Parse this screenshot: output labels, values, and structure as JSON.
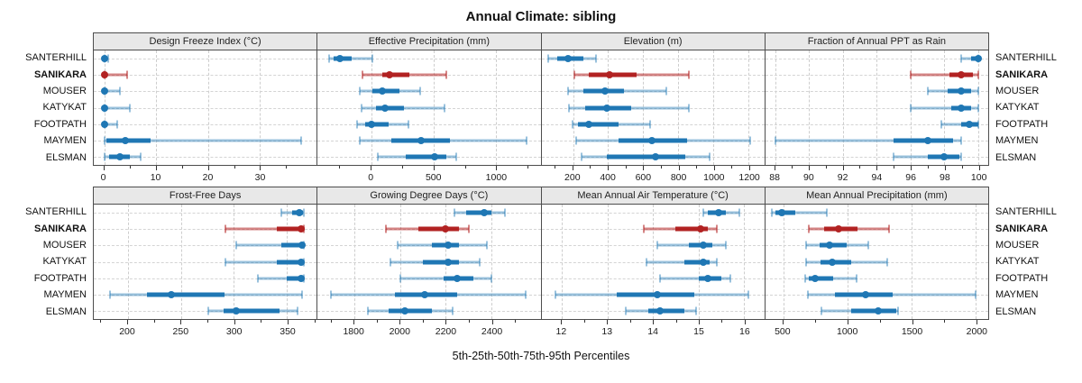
{
  "title": "Annual Climate: sibling",
  "caption": "5th-25th-50th-75th-95th Percentiles",
  "sites": [
    "SANTERHILL",
    "SANIKARA",
    "MOUSER",
    "KATYKAT",
    "FOOTPATH",
    "MAYMEN",
    "ELSMAN"
  ],
  "highlight_site": "SANIKARA",
  "colors": {
    "normal": "#1f77b4",
    "normal_whisker": "rgba(31,119,180,0.45)",
    "highlight": "#b22222",
    "highlight_whisker": "rgba(178,34,34,0.55)",
    "panel_header_bg": "#e8e8e8",
    "panel_border": "#4d4d4d",
    "grid": "#cdcdcd"
  },
  "chart_data": {
    "type": "multi_panel_horizontal_errorbar",
    "percentiles": [
      5,
      25,
      50,
      75,
      95
    ],
    "layout": {
      "rows": 2,
      "cols": 4,
      "site_labels": "both_sides",
      "grid": "dashed"
    },
    "panels": [
      {
        "title": "Design Freeze Index (°C)",
        "xlim": [
          -2,
          41
        ],
        "major_ticks": [
          0,
          10,
          20,
          30
        ],
        "minor_ticks": [
          5,
          15,
          25,
          35
        ],
        "series": [
          {
            "site": "SANTERHILL",
            "values": [
              0,
              0,
              0,
              0,
              0.7
            ]
          },
          {
            "site": "SANIKARA",
            "values": [
              0,
              0,
              0.1,
              0.6,
              4.5
            ]
          },
          {
            "site": "MOUSER",
            "values": [
              0,
              0,
              0.1,
              0.5,
              3
            ]
          },
          {
            "site": "KATYKAT",
            "values": [
              0,
              0,
              0.1,
              0.5,
              5
            ]
          },
          {
            "site": "FOOTPATH",
            "values": [
              0,
              0,
              0.1,
              0.4,
              2.5
            ]
          },
          {
            "site": "MAYMEN",
            "values": [
              0,
              0.5,
              4,
              9,
              38
            ]
          },
          {
            "site": "ELSMAN",
            "values": [
              0,
              1,
              3,
              5,
              7
            ]
          }
        ]
      },
      {
        "title": "Effective Precipitation (mm)",
        "xlim": [
          -430,
          1360
        ],
        "major_ticks": [
          0,
          500,
          1000
        ],
        "minor_ticks": [
          -250,
          250,
          750,
          1250
        ],
        "series": [
          {
            "site": "SANTERHILL",
            "values": [
              -340,
              -300,
              -250,
              -160,
              10
            ]
          },
          {
            "site": "SANIKARA",
            "values": [
              -70,
              90,
              150,
              310,
              600
            ]
          },
          {
            "site": "MOUSER",
            "values": [
              -90,
              10,
              90,
              230,
              390
            ]
          },
          {
            "site": "KATYKAT",
            "values": [
              -80,
              40,
              110,
              260,
              590
            ]
          },
          {
            "site": "FOOTPATH",
            "values": [
              -110,
              -50,
              0,
              140,
              300
            ]
          },
          {
            "site": "MAYMEN",
            "values": [
              -90,
              160,
              400,
              630,
              1250
            ]
          },
          {
            "site": "ELSMAN",
            "values": [
              50,
              280,
              510,
              600,
              680
            ]
          }
        ]
      },
      {
        "title": "Elevation (m)",
        "xlim": [
          20,
          1290
        ],
        "major_ticks": [
          200,
          400,
          600,
          800,
          1000,
          1200
        ],
        "minor_ticks": [
          100,
          300,
          500,
          700,
          900,
          1100
        ],
        "series": [
          {
            "site": "SANTERHILL",
            "values": [
              60,
              110,
              170,
              260,
              330
            ]
          },
          {
            "site": "SANIKARA",
            "values": [
              210,
              290,
              410,
              560,
              860
            ]
          },
          {
            "site": "MOUSER",
            "values": [
              170,
              260,
              380,
              490,
              730
            ]
          },
          {
            "site": "KATYKAT",
            "values": [
              175,
              270,
              390,
              530,
              860
            ]
          },
          {
            "site": "FOOTPATH",
            "values": [
              195,
              230,
              290,
              460,
              640
            ]
          },
          {
            "site": "MAYMEN",
            "values": [
              220,
              460,
              650,
              850,
              1210
            ]
          },
          {
            "site": "ELSMAN",
            "values": [
              250,
              390,
              670,
              840,
              980
            ]
          }
        ]
      },
      {
        "title": "Fraction of Annual PPT as Rain",
        "xlim": [
          87.4,
          100.6
        ],
        "major_ticks": [
          88,
          90,
          92,
          94,
          96,
          98,
          100
        ],
        "minor_ticks": [
          89,
          91,
          93,
          95,
          97,
          99
        ],
        "series": [
          {
            "site": "SANTERHILL",
            "values": [
              99,
              99.6,
              100,
              100,
              100
            ]
          },
          {
            "site": "SANIKARA",
            "values": [
              96,
              98.3,
              99,
              99.7,
              100
            ]
          },
          {
            "site": "MOUSER",
            "values": [
              97,
              98.2,
              99,
              99.6,
              100
            ]
          },
          {
            "site": "KATYKAT",
            "values": [
              96,
              98.4,
              99,
              99.6,
              100
            ]
          },
          {
            "site": "FOOTPATH",
            "values": [
              97.8,
              99,
              99.5,
              100,
              100
            ]
          },
          {
            "site": "MAYMEN",
            "values": [
              88,
              95,
              97,
              98.5,
              99
            ]
          },
          {
            "site": "ELSMAN",
            "values": [
              95,
              97,
              98,
              98.9,
              99
            ]
          }
        ]
      },
      {
        "title": "Frost-Free Days",
        "xlim": [
          168,
          378
        ],
        "major_ticks": [
          200,
          250,
          300,
          350
        ],
        "minor_ticks": [
          175,
          225,
          275,
          325,
          375
        ],
        "series": [
          {
            "site": "SANTERHILL",
            "values": [
              345,
              355,
              362,
              365,
              366
            ]
          },
          {
            "site": "SANIKARA",
            "values": [
              292,
              340,
              363,
              365,
              366
            ]
          },
          {
            "site": "MOUSER",
            "values": [
              302,
              345,
              364,
              365,
              366
            ]
          },
          {
            "site": "KATYKAT",
            "values": [
              292,
              340,
              363,
              365,
              366
            ]
          },
          {
            "site": "FOOTPATH",
            "values": [
              323,
              350,
              363,
              365,
              366
            ]
          },
          {
            "site": "MAYMEN",
            "values": [
              183,
              218,
              241,
              291,
              364
            ]
          },
          {
            "site": "ELSMAN",
            "values": [
              276,
              290,
              302,
              343,
              360
            ]
          }
        ]
      },
      {
        "title": "Growing Degree Days (°C)",
        "xlim": [
          1640,
          2615
        ],
        "major_ticks": [
          1800,
          2000,
          2200,
          2400
        ],
        "minor_ticks": [
          1700,
          1900,
          2100,
          2300,
          2500
        ],
        "series": [
          {
            "site": "SANTERHILL",
            "values": [
              2240,
              2290,
              2370,
              2400,
              2460
            ]
          },
          {
            "site": "SANIKARA",
            "values": [
              1940,
              2080,
              2200,
              2260,
              2300
            ]
          },
          {
            "site": "MOUSER",
            "values": [
              1990,
              2140,
              2210,
              2260,
              2380
            ]
          },
          {
            "site": "KATYKAT",
            "values": [
              1960,
              2100,
              2210,
              2260,
              2350
            ]
          },
          {
            "site": "FOOTPATH",
            "values": [
              2000,
              2190,
              2250,
              2320,
              2400
            ]
          },
          {
            "site": "MAYMEN",
            "values": [
              1700,
              1980,
              2110,
              2250,
              2550
            ]
          },
          {
            "site": "ELSMAN",
            "values": [
              1860,
              1950,
              2020,
              2140,
              2230
            ]
          }
        ]
      },
      {
        "title": "Mean Annual Air Temperature (°C)",
        "xlim": [
          11.55,
          16.45
        ],
        "major_ticks": [
          12,
          13,
          14,
          15,
          16
        ],
        "minor_ticks": [
          12.5,
          13.5,
          14.5,
          15.5
        ],
        "series": [
          {
            "site": "SANTERHILL",
            "values": [
              15.1,
              15.2,
              15.45,
              15.6,
              15.9
            ]
          },
          {
            "site": "SANIKARA",
            "values": [
              13.8,
              14.5,
              15.05,
              15.2,
              15.4
            ]
          },
          {
            "site": "MOUSER",
            "values": [
              14.1,
              14.8,
              15.1,
              15.3,
              15.6
            ]
          },
          {
            "site": "KATYKAT",
            "values": [
              13.85,
              14.7,
              15.1,
              15.25,
              15.4
            ]
          },
          {
            "site": "FOOTPATH",
            "values": [
              14.15,
              15.0,
              15.2,
              15.5,
              15.7
            ]
          },
          {
            "site": "MAYMEN",
            "values": [
              11.85,
              13.2,
              14.1,
              14.9,
              16.1
            ]
          },
          {
            "site": "ELSMAN",
            "values": [
              13.4,
              13.9,
              14.15,
              14.7,
              14.95
            ]
          }
        ]
      },
      {
        "title": "Mean Annual Precipitation (mm)",
        "xlim": [
          360,
          2095
        ],
        "major_ticks": [
          500,
          1000,
          1500,
          2000
        ],
        "minor_ticks": [
          750,
          1250,
          1750
        ],
        "series": [
          {
            "site": "SANTERHILL",
            "values": [
              410,
              440,
              490,
              590,
              840
            ]
          },
          {
            "site": "SANIKARA",
            "values": [
              700,
              820,
              930,
              1080,
              1320
            ]
          },
          {
            "site": "MOUSER",
            "values": [
              680,
              780,
              860,
              990,
              1160
            ]
          },
          {
            "site": "KATYKAT",
            "values": [
              680,
              790,
              880,
              1030,
              1310
            ]
          },
          {
            "site": "FOOTPATH",
            "values": [
              670,
              700,
              750,
              890,
              1070
            ]
          },
          {
            "site": "MAYMEN",
            "values": [
              690,
              900,
              1140,
              1350,
              2000
            ]
          },
          {
            "site": "ELSMAN",
            "values": [
              800,
              1030,
              1240,
              1380,
              1390
            ]
          }
        ]
      }
    ]
  }
}
